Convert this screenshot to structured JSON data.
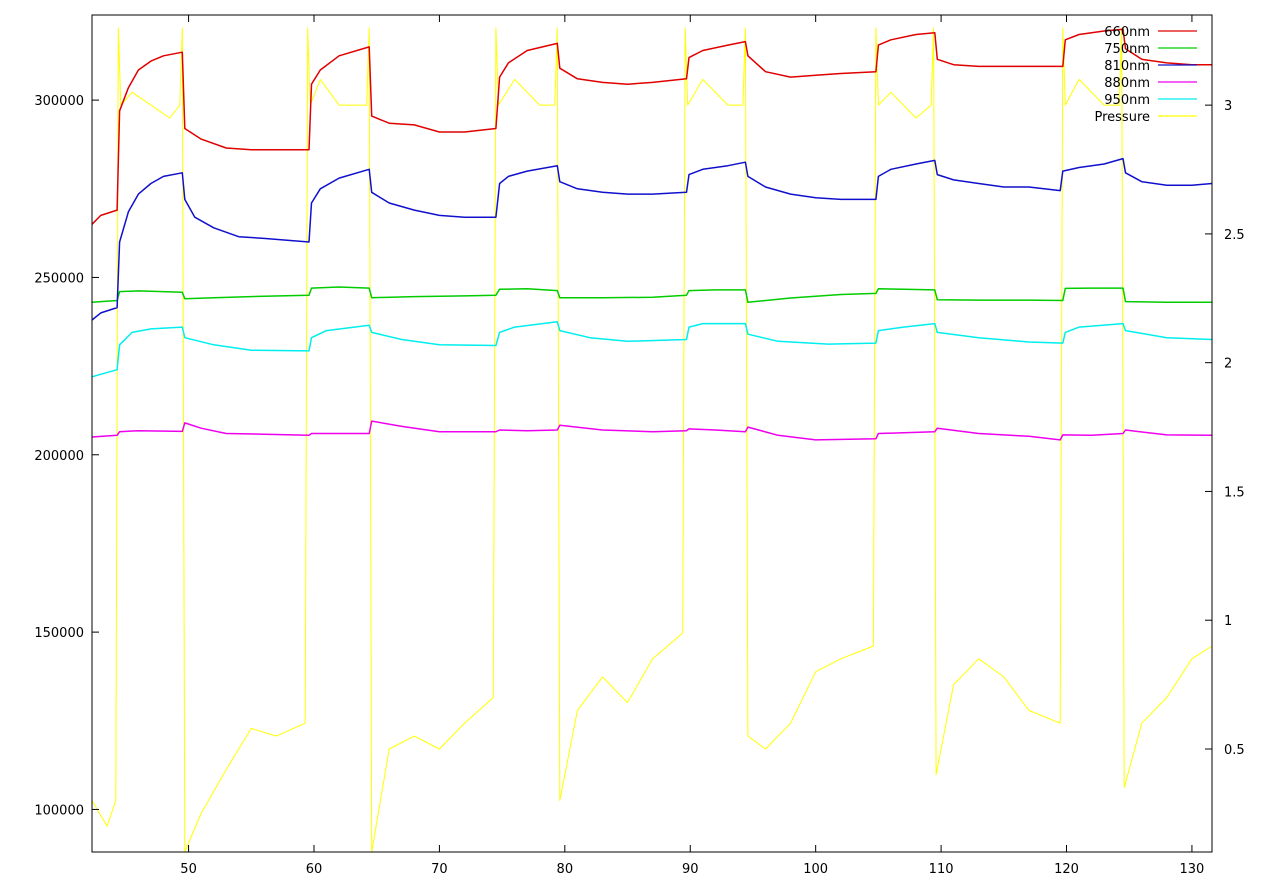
{
  "chart_data": {
    "type": "line",
    "title": "",
    "xlabel": "",
    "ylabel": "",
    "y2label": "",
    "grid": false,
    "legend_position": "top-right",
    "xlim": [
      42.3,
      131.6
    ],
    "ylim": [
      88000,
      324000
    ],
    "y2lim": [
      0.1,
      3.35
    ],
    "x_ticks": [
      50,
      60,
      70,
      80,
      90,
      100,
      110,
      120,
      130
    ],
    "y_ticks": [
      100000,
      150000,
      200000,
      250000,
      300000
    ],
    "y2_ticks": [
      0.5,
      1,
      1.5,
      2,
      2.5,
      3
    ],
    "x_tick_labels": [
      "50",
      "60",
      "70",
      "80",
      "90",
      "100",
      "110",
      "120",
      "130"
    ],
    "y_tick_labels": [
      "100000",
      "150000",
      "200000",
      "250000",
      "300000"
    ],
    "y2_tick_labels": [
      "0.5",
      "1",
      "1.5",
      "2",
      "2.5",
      "3"
    ],
    "series": [
      {
        "name": "660nm",
        "color": "#e00000",
        "axis": "y1",
        "x": [
          42.3,
          43,
          44.3,
          44.5,
          45.2,
          46,
          47,
          48,
          49.5,
          49.7,
          51,
          53,
          55,
          57,
          59.6,
          59.8,
          60.5,
          62,
          64.4,
          64.6,
          66,
          68,
          70,
          72,
          74.5,
          74.8,
          75.5,
          77,
          79.4,
          79.6,
          81,
          83,
          85,
          87,
          89.7,
          89.9,
          91,
          93,
          94.4,
          94.6,
          96,
          98,
          100,
          102,
          104.8,
          105,
          106,
          108,
          109.5,
          109.7,
          111,
          113,
          115,
          117,
          119.7,
          119.9,
          121,
          123,
          124.5,
          124.7,
          126,
          128,
          130,
          131.6
        ],
        "y": [
          265000,
          267500,
          269000,
          297000,
          303500,
          308500,
          311000,
          312500,
          313500,
          292000,
          289000,
          286500,
          286000,
          286000,
          286000,
          304500,
          308500,
          312500,
          315000,
          295500,
          293500,
          293000,
          291000,
          291000,
          292000,
          306500,
          310500,
          314000,
          316000,
          309000,
          306000,
          305000,
          304500,
          305000,
          306000,
          312000,
          314000,
          315500,
          316500,
          312500,
          308000,
          306500,
          307000,
          307500,
          308000,
          315500,
          317000,
          318500,
          319000,
          311500,
          310000,
          309500,
          309500,
          309500,
          309500,
          317000,
          318500,
          319500,
          320000,
          314500,
          311500,
          310500,
          310000,
          310000
        ]
      },
      {
        "name": "750nm",
        "color": "#00cc00",
        "axis": "y1",
        "x": [
          42.3,
          44.3,
          44.5,
          46,
          49.5,
          49.7,
          52,
          56,
          59.6,
          59.8,
          62,
          64.4,
          64.6,
          68,
          72,
          74.5,
          74.8,
          77,
          79.4,
          79.6,
          83,
          87,
          89.7,
          89.9,
          92,
          94.4,
          94.6,
          98,
          102,
          104.8,
          105,
          107,
          109.5,
          109.7,
          113,
          117,
          119.7,
          119.9,
          122,
          124.5,
          124.7,
          128,
          131.6
        ],
        "y": [
          243000,
          243500,
          246000,
          246200,
          245800,
          244000,
          244300,
          244700,
          245000,
          247000,
          247300,
          247000,
          244300,
          244600,
          244800,
          245000,
          246700,
          246800,
          246300,
          244300,
          244300,
          244400,
          245000,
          246300,
          246500,
          246500,
          243000,
          244200,
          245200,
          245500,
          246800,
          246700,
          246500,
          243700,
          243600,
          243600,
          243500,
          246900,
          247000,
          247000,
          243200,
          243000,
          243000
        ]
      },
      {
        "name": "810nm",
        "color": "#1010cc",
        "axis": "y1",
        "x": [
          42.3,
          43,
          44.3,
          44.5,
          45.2,
          46,
          47,
          48,
          49.5,
          49.7,
          50.5,
          52,
          54,
          56,
          59.6,
          59.8,
          60.5,
          62,
          64.4,
          64.6,
          66,
          68,
          70,
          72,
          74.5,
          74.8,
          75.5,
          77,
          79.4,
          79.6,
          81,
          83,
          85,
          87,
          89.7,
          89.9,
          91,
          93,
          94.4,
          94.6,
          96,
          98,
          100,
          102,
          104.8,
          105,
          106,
          108,
          109.5,
          109.7,
          111,
          113,
          115,
          117,
          119.5,
          119.7,
          121,
          123,
          124.5,
          124.7,
          126,
          128,
          130,
          131.6
        ],
        "y": [
          238000,
          240000,
          241500,
          260000,
          268500,
          273500,
          276500,
          278500,
          279500,
          272000,
          267000,
          264000,
          261500,
          261000,
          260000,
          271000,
          275000,
          278000,
          280500,
          274000,
          271000,
          269000,
          267500,
          267000,
          267000,
          276500,
          278500,
          280000,
          281500,
          277000,
          275000,
          274000,
          273500,
          273500,
          274000,
          279000,
          280500,
          281500,
          282500,
          278500,
          275500,
          273500,
          272500,
          272000,
          272000,
          278500,
          280500,
          282000,
          283000,
          279000,
          277500,
          276500,
          275500,
          275500,
          274500,
          280000,
          281000,
          282000,
          283500,
          279500,
          277000,
          276000,
          276000,
          276500
        ]
      },
      {
        "name": "880nm",
        "color": "#ee00ee",
        "axis": "y1",
        "x": [
          42.3,
          44.3,
          44.5,
          46,
          49.5,
          49.7,
          51,
          53,
          56,
          59.6,
          59.8,
          62,
          64.4,
          64.6,
          67,
          70,
          74.5,
          74.8,
          77,
          79.4,
          79.6,
          83,
          87,
          89.7,
          89.9,
          92,
          94.4,
          94.6,
          97,
          100,
          104.8,
          105,
          107,
          109.5,
          109.7,
          113,
          117,
          119.5,
          119.7,
          122,
          124.5,
          124.7,
          128,
          131.6
        ],
        "y": [
          205000,
          205500,
          206500,
          206800,
          206600,
          209000,
          207500,
          206000,
          205800,
          205500,
          206000,
          206000,
          206000,
          209500,
          208000,
          206500,
          206500,
          207000,
          206800,
          207000,
          208300,
          207000,
          206500,
          206800,
          207300,
          207000,
          206500,
          207800,
          205500,
          204200,
          204500,
          206000,
          206200,
          206500,
          207500,
          206000,
          205200,
          204200,
          205600,
          205500,
          206000,
          207000,
          205600,
          205500
        ]
      },
      {
        "name": "950nm",
        "color": "#00eeee",
        "axis": "y1",
        "x": [
          42.3,
          44.3,
          44.5,
          45.5,
          47,
          49.5,
          49.7,
          52,
          55,
          59.6,
          59.8,
          61,
          64.4,
          64.6,
          67,
          70,
          74.5,
          74.8,
          76,
          79.4,
          79.6,
          82,
          85,
          89.7,
          89.9,
          91,
          94.4,
          94.6,
          97,
          101,
          104.8,
          105,
          107,
          109.5,
          109.7,
          113,
          117,
          119.7,
          119.9,
          121,
          124.5,
          124.7,
          128,
          131.6
        ],
        "y": [
          222000,
          224000,
          231000,
          234500,
          235500,
          236000,
          233000,
          231000,
          229500,
          229300,
          233000,
          235000,
          236500,
          234500,
          232500,
          231000,
          230800,
          234500,
          236000,
          237500,
          235000,
          233000,
          232000,
          232500,
          236000,
          237000,
          237000,
          234000,
          232000,
          231200,
          231500,
          235000,
          236000,
          237000,
          234500,
          233000,
          231800,
          231500,
          234500,
          236000,
          237000,
          235000,
          233000,
          232500
        ]
      },
      {
        "name": "Pressure",
        "color": "#ffff00",
        "axis": "y2",
        "x": [
          42.3,
          43.5,
          44.2,
          44.4,
          44.6,
          45.5,
          47,
          48.5,
          49.3,
          49.5,
          49.7,
          51,
          53,
          55,
          57,
          59.3,
          59.5,
          59.7,
          60.5,
          62,
          64.2,
          64.4,
          64.6,
          66,
          68,
          70,
          72,
          74.3,
          74.5,
          74.7,
          76,
          78,
          79.2,
          79.4,
          79.6,
          81,
          83,
          85,
          87,
          89.4,
          89.6,
          89.8,
          91,
          93,
          94.2,
          94.4,
          94.6,
          96,
          98,
          100,
          102,
          104.6,
          104.8,
          105,
          106,
          108,
          109.2,
          109.4,
          109.6,
          111,
          113,
          115,
          117,
          119.5,
          119.7,
          119.9,
          121,
          123,
          124.2,
          124.4,
          124.6,
          126,
          128,
          130,
          131.6
        ],
        "y": [
          0.3,
          0.2,
          0.3,
          3.3,
          3.0,
          3.05,
          3.0,
          2.95,
          3.0,
          3.3,
          0.1,
          0.25,
          0.42,
          0.58,
          0.55,
          0.6,
          3.3,
          3.0,
          3.1,
          3.0,
          3.0,
          3.3,
          0.1,
          0.5,
          0.55,
          0.5,
          0.6,
          0.7,
          3.3,
          3.0,
          3.1,
          3.0,
          3.0,
          3.3,
          0.3,
          0.65,
          0.78,
          0.68,
          0.85,
          0.95,
          3.3,
          3.0,
          3.1,
          3.0,
          3.0,
          3.3,
          0.55,
          0.5,
          0.6,
          0.8,
          0.85,
          0.9,
          3.3,
          3.0,
          3.05,
          2.95,
          3.0,
          3.3,
          0.4,
          0.75,
          0.85,
          0.78,
          0.65,
          0.6,
          3.3,
          3.0,
          3.1,
          3.0,
          3.0,
          3.3,
          0.35,
          0.6,
          0.7,
          0.85,
          0.9
        ]
      }
    ]
  }
}
